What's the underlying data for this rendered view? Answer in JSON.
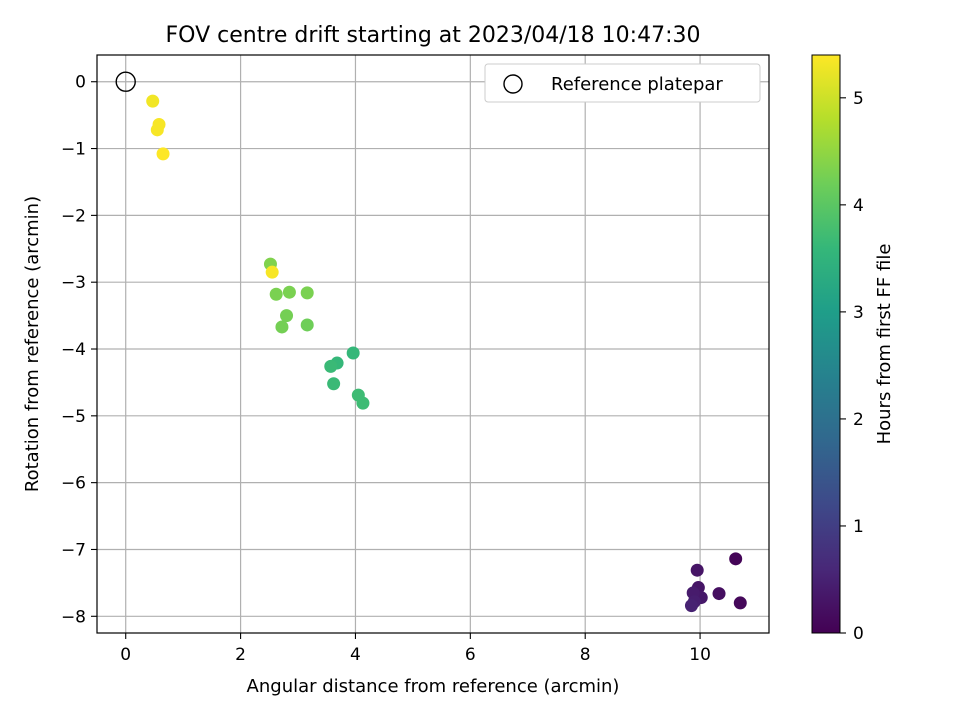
{
  "chart_data": {
    "type": "scatter",
    "title": "FOV centre drift starting at 2023/04/18 10:47:30",
    "xlabel": "Angular distance from reference (arcmin)",
    "ylabel": "Rotation from reference (arcmin)",
    "xlim": [
      -0.5,
      11.2
    ],
    "ylim": [
      -8.25,
      0.4
    ],
    "xticks": [
      0,
      2,
      4,
      6,
      8,
      10
    ],
    "xtick_labels": [
      "0",
      "2",
      "4",
      "6",
      "8",
      "10"
    ],
    "yticks": [
      0,
      -1,
      -2,
      -3,
      -4,
      -5,
      -6,
      -7,
      -8
    ],
    "ytick_labels": [
      "0",
      "−1",
      "−2",
      "−3",
      "−4",
      "−5",
      "−6",
      "−7",
      "−8"
    ],
    "grid": true,
    "legend": {
      "location": "top-right",
      "entries": [
        {
          "label": "Reference platepar",
          "marker": "open-circle",
          "color": "#000000"
        }
      ]
    },
    "reference_point": {
      "x": 0,
      "y": 0
    },
    "colorbar": {
      "label": "Hours from first FF file",
      "range": [
        0,
        5.4
      ],
      "ticks": [
        0,
        1,
        2,
        3,
        4,
        5
      ],
      "tick_labels": [
        "0",
        "1",
        "2",
        "3",
        "4",
        "5"
      ],
      "colormap": [
        "#440154",
        "#482878",
        "#3e4989",
        "#31688e",
        "#26828e",
        "#1f9e89",
        "#35b779",
        "#6ece58",
        "#b5de2b",
        "#fde725"
      ]
    },
    "points": [
      {
        "x": 10.62,
        "y": -7.14,
        "hours": 0.05
      },
      {
        "x": 10.7,
        "y": -7.8,
        "hours": 0.1
      },
      {
        "x": 10.33,
        "y": -7.66,
        "hours": 0.2
      },
      {
        "x": 9.95,
        "y": -7.31,
        "hours": 0.3
      },
      {
        "x": 9.97,
        "y": -7.57,
        "hours": 0.3
      },
      {
        "x": 10.02,
        "y": -7.72,
        "hours": 0.35
      },
      {
        "x": 9.88,
        "y": -7.65,
        "hours": 0.4
      },
      {
        "x": 9.9,
        "y": -7.78,
        "hours": 0.45
      },
      {
        "x": 9.85,
        "y": -7.84,
        "hours": 0.5
      },
      {
        "x": 3.96,
        "y": -4.06,
        "hours": 3.6
      },
      {
        "x": 3.68,
        "y": -4.21,
        "hours": 3.6
      },
      {
        "x": 3.57,
        "y": -4.26,
        "hours": 3.65
      },
      {
        "x": 3.62,
        "y": -4.52,
        "hours": 3.65
      },
      {
        "x": 4.05,
        "y": -4.69,
        "hours": 3.7
      },
      {
        "x": 4.13,
        "y": -4.81,
        "hours": 3.7
      },
      {
        "x": 3.16,
        "y": -3.64,
        "hours": 4.2
      },
      {
        "x": 2.72,
        "y": -3.67,
        "hours": 4.25
      },
      {
        "x": 2.8,
        "y": -3.5,
        "hours": 4.25
      },
      {
        "x": 3.16,
        "y": -3.16,
        "hours": 4.3
      },
      {
        "x": 2.85,
        "y": -3.15,
        "hours": 4.3
      },
      {
        "x": 2.62,
        "y": -3.18,
        "hours": 4.3
      },
      {
        "x": 2.52,
        "y": -2.73,
        "hours": 4.35
      },
      {
        "x": 2.55,
        "y": -2.85,
        "hours": 5.35
      },
      {
        "x": 0.47,
        "y": -0.29,
        "hours": 5.3
      },
      {
        "x": 0.58,
        "y": -0.64,
        "hours": 5.35
      },
      {
        "x": 0.55,
        "y": -0.72,
        "hours": 5.35
      },
      {
        "x": 0.65,
        "y": -1.08,
        "hours": 5.4
      }
    ]
  }
}
